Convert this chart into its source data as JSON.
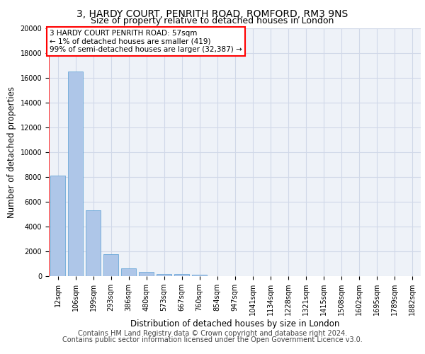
{
  "title_line1": "3, HARDY COURT, PENRITH ROAD, ROMFORD, RM3 9NS",
  "title_line2": "Size of property relative to detached houses in London",
  "xlabel": "Distribution of detached houses by size in London",
  "ylabel": "Number of detached properties",
  "bar_labels": [
    "12sqm",
    "106sqm",
    "199sqm",
    "293sqm",
    "386sqm",
    "480sqm",
    "573sqm",
    "667sqm",
    "760sqm",
    "854sqm",
    "947sqm",
    "1041sqm",
    "1134sqm",
    "1228sqm",
    "1321sqm",
    "1415sqm",
    "1508sqm",
    "1602sqm",
    "1695sqm",
    "1789sqm",
    "1882sqm"
  ],
  "bar_values": [
    8100,
    16500,
    5300,
    1750,
    650,
    330,
    200,
    160,
    130,
    0,
    0,
    0,
    0,
    0,
    0,
    0,
    0,
    0,
    0,
    0,
    0
  ],
  "bar_color": "#aec6e8",
  "bar_edge_color": "#5a9fd4",
  "annotation_box_text": "3 HARDY COURT PENRITH ROAD: 57sqm\n← 1% of detached houses are smaller (419)\n99% of semi-detached houses are larger (32,387) →",
  "annotation_box_color": "red",
  "annotation_fill_color": "white",
  "ylim": [
    0,
    20000
  ],
  "yticks": [
    0,
    2000,
    4000,
    6000,
    8000,
    10000,
    12000,
    14000,
    16000,
    18000,
    20000
  ],
  "grid_color": "#d0d8e8",
  "background_color": "#eef2f8",
  "footer_line1": "Contains HM Land Registry data © Crown copyright and database right 2024.",
  "footer_line2": "Contains public sector information licensed under the Open Government Licence v3.0.",
  "title_fontsize": 10,
  "subtitle_fontsize": 9,
  "axis_label_fontsize": 8.5,
  "tick_fontsize": 7,
  "footer_fontsize": 7,
  "annotation_fontsize": 7.5
}
